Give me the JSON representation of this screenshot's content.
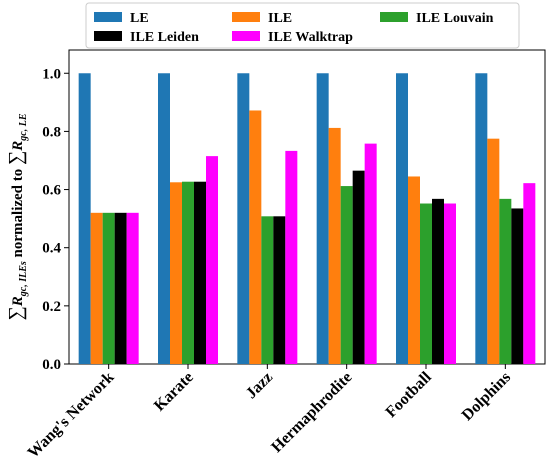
{
  "chart_data": {
    "type": "bar",
    "categories": [
      "Wang's Network",
      "Karate",
      "Jazz",
      "Hermaphrodite",
      "Football",
      "Dolphins"
    ],
    "series": [
      {
        "name": "LE",
        "color": "#1f77b4",
        "values": [
          1.0,
          1.0,
          1.0,
          1.0,
          1.0,
          1.0
        ]
      },
      {
        "name": "ILE",
        "color": "#ff7f0e",
        "values": [
          0.52,
          0.625,
          0.872,
          0.812,
          0.645,
          0.775
        ]
      },
      {
        "name": "ILE Louvain",
        "color": "#2ca02c",
        "values": [
          0.52,
          0.627,
          0.508,
          0.612,
          0.552,
          0.568
        ]
      },
      {
        "name": "ILE Leiden",
        "color": "#000000",
        "values": [
          0.52,
          0.627,
          0.508,
          0.665,
          0.568,
          0.535
        ]
      },
      {
        "name": "ILE Walktrap",
        "color": "#ff00ff",
        "values": [
          0.52,
          0.715,
          0.733,
          0.758,
          0.552,
          0.622
        ]
      }
    ],
    "ylim": [
      0.0,
      1.08
    ],
    "yticks": [
      "0.0",
      "0.2",
      "0.4",
      "0.6",
      "0.8",
      "1.0"
    ],
    "ylabel": {
      "sigma1": "∑",
      "r1": "R",
      "sub1": "gc, ILEs",
      "mid": " normalized to ",
      "sigma2": "∑",
      "r2": "R",
      "sub2": "gc, LE"
    },
    "legend": {
      "position": "top-center",
      "columns": 3
    }
  }
}
